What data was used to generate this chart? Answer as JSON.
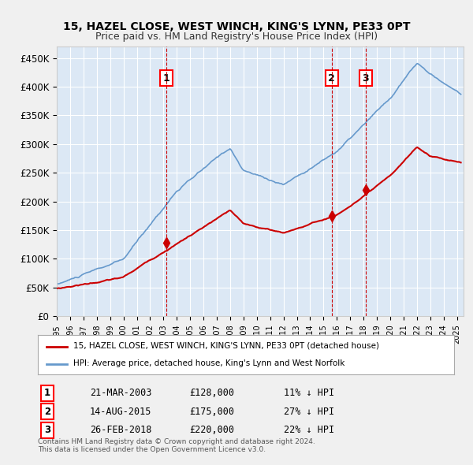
{
  "title": "15, HAZEL CLOSE, WEST WINCH, KING'S LYNN, PE33 0PT",
  "subtitle": "Price paid vs. HM Land Registry's House Price Index (HPI)",
  "ylabel": "",
  "ylim": [
    0,
    470000
  ],
  "yticks": [
    0,
    50000,
    100000,
    150000,
    200000,
    250000,
    300000,
    350000,
    400000,
    450000
  ],
  "ytick_labels": [
    "£0",
    "£50K",
    "£100K",
    "£150K",
    "£200K",
    "£250K",
    "£300K",
    "£350K",
    "£400K",
    "£450K"
  ],
  "background_color": "#e8f0f8",
  "plot_bg_color": "#dce8f5",
  "hpi_color": "#6699cc",
  "price_color": "#cc0000",
  "vline_color": "#cc0000",
  "sale_marker_color": "#cc0000",
  "transactions": [
    {
      "label": "1",
      "date_num": 2003.22,
      "price": 128000
    },
    {
      "label": "2",
      "date_num": 2015.62,
      "price": 175000
    },
    {
      "label": "3",
      "date_num": 2018.15,
      "price": 220000
    }
  ],
  "legend_price_label": "15, HAZEL CLOSE, WEST WINCH, KING'S LYNN, PE33 0PT (detached house)",
  "legend_hpi_label": "HPI: Average price, detached house, King's Lynn and West Norfolk",
  "table_rows": [
    {
      "num": "1",
      "date": "21-MAR-2003",
      "price": "£128,000",
      "hpi": "11% ↓ HPI"
    },
    {
      "num": "2",
      "date": "14-AUG-2015",
      "price": "£175,000",
      "hpi": "27% ↓ HPI"
    },
    {
      "num": "3",
      "date": "26-FEB-2018",
      "price": "£220,000",
      "hpi": "22% ↓ HPI"
    }
  ],
  "footer": "Contains HM Land Registry data © Crown copyright and database right 2024.\nThis data is licensed under the Open Government Licence v3.0.",
  "xmin": 1995.0,
  "xmax": 2025.5
}
